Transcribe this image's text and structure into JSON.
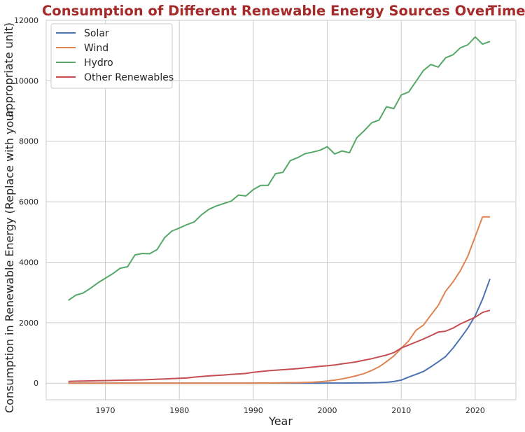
{
  "chart_data": {
    "type": "line",
    "title_left": "Consumption of Different Renewable Energy Sources Over",
    "title_right": "Time",
    "xlabel": "Year",
    "ylabel_line1": "appropriate unit)",
    "ylabel_line2": "Consumption in Renewable Energy (Replace with your",
    "xlim": [
      1962,
      2025.5
    ],
    "ylim": [
      -550,
      12000
    ],
    "xticks": [
      1970,
      1980,
      1990,
      2000,
      2010,
      2020
    ],
    "yticks": [
      0,
      2000,
      4000,
      6000,
      8000,
      10000,
      12000
    ],
    "grid": true,
    "legend_position": "top-left",
    "x": [
      1965,
      1966,
      1967,
      1968,
      1969,
      1970,
      1971,
      1972,
      1973,
      1974,
      1975,
      1976,
      1977,
      1978,
      1979,
      1980,
      1981,
      1982,
      1983,
      1984,
      1985,
      1986,
      1987,
      1988,
      1989,
      1990,
      1991,
      1992,
      1993,
      1994,
      1995,
      1996,
      1997,
      1998,
      1999,
      2000,
      2001,
      2002,
      2003,
      2004,
      2005,
      2006,
      2007,
      2008,
      2009,
      2010,
      2011,
      2012,
      2013,
      2014,
      2015,
      2016,
      2017,
      2018,
      2019,
      2020,
      2021,
      2022
    ],
    "series": [
      {
        "name": "Solar",
        "color": "#4c72b0",
        "values": [
          0,
          0,
          0,
          0,
          0,
          0,
          0,
          0,
          0,
          0,
          0,
          0,
          0,
          0,
          0,
          0,
          0,
          0,
          0,
          0,
          0,
          0,
          0,
          0,
          0,
          0,
          1,
          1,
          1,
          1,
          1,
          1,
          2,
          2,
          2,
          3,
          3,
          4,
          5,
          7,
          9,
          12,
          18,
          30,
          55,
          100,
          200,
          290,
          385,
          540,
          705,
          880,
          1160,
          1480,
          1820,
          2230,
          2780,
          3450
        ]
      },
      {
        "name": "Wind",
        "color": "#dd8452",
        "values": [
          0,
          0,
          0,
          0,
          0,
          0,
          0,
          0,
          0,
          0,
          0,
          0,
          0,
          0,
          0,
          0,
          0,
          0,
          0,
          0,
          0,
          0,
          0,
          1,
          2,
          3,
          4,
          6,
          8,
          10,
          14,
          18,
          24,
          32,
          45,
          70,
          100,
          140,
          190,
          250,
          320,
          420,
          540,
          710,
          900,
          1150,
          1400,
          1750,
          1920,
          2250,
          2570,
          3040,
          3350,
          3720,
          4200,
          4850,
          5500,
          5500
        ]
      },
      {
        "name": "Hydro",
        "color": "#55a868",
        "values": [
          2740,
          2910,
          2980,
          3140,
          3320,
          3470,
          3620,
          3800,
          3850,
          4240,
          4290,
          4280,
          4420,
          4810,
          5030,
          5130,
          5240,
          5330,
          5570,
          5750,
          5860,
          5940,
          6020,
          6220,
          6190,
          6400,
          6540,
          6540,
          6930,
          6970,
          7360,
          7460,
          7590,
          7640,
          7700,
          7820,
          7580,
          7680,
          7620,
          8120,
          8350,
          8610,
          8700,
          9140,
          9080,
          9530,
          9630,
          9980,
          10340,
          10540,
          10450,
          10760,
          10860,
          11090,
          11190,
          11450,
          11210,
          11300
        ]
      },
      {
        "name": "Other Renewables",
        "color": "#c44e52",
        "values": [
          60,
          65,
          70,
          75,
          80,
          85,
          90,
          95,
          100,
          105,
          110,
          120,
          130,
          140,
          150,
          160,
          170,
          200,
          220,
          240,
          255,
          270,
          290,
          305,
          320,
          360,
          385,
          410,
          430,
          445,
          465,
          480,
          505,
          530,
          555,
          575,
          600,
          640,
          670,
          710,
          760,
          810,
          870,
          930,
          1010,
          1160,
          1260,
          1360,
          1460,
          1570,
          1690,
          1720,
          1820,
          1960,
          2070,
          2180,
          2340,
          2410
        ]
      }
    ]
  }
}
